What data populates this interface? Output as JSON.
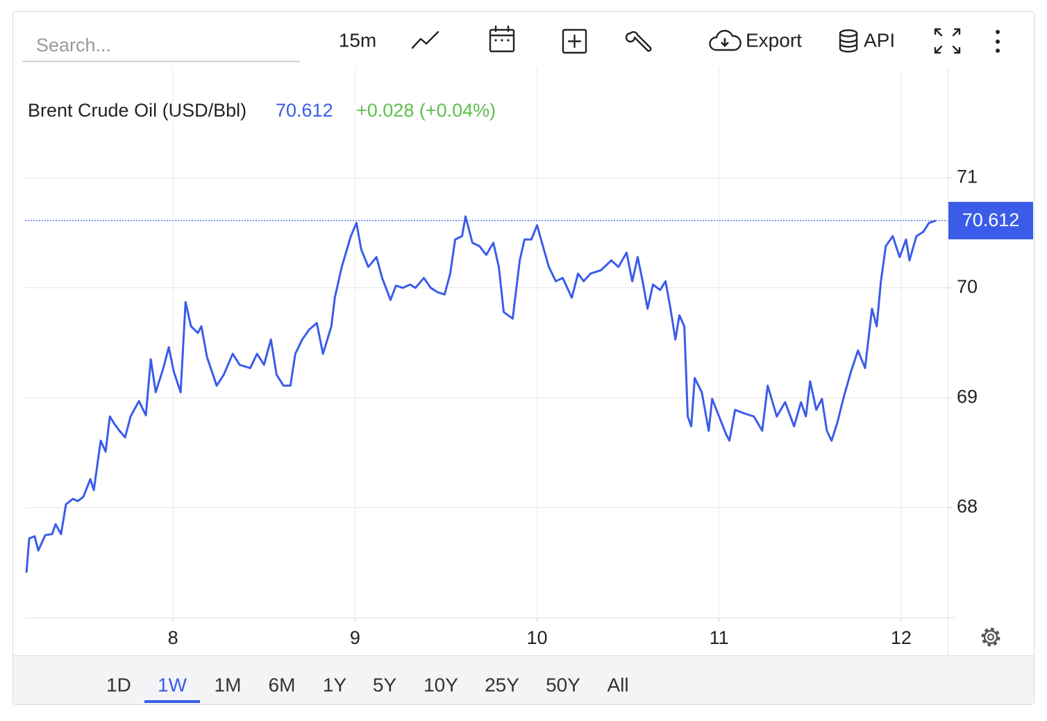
{
  "toolbar": {
    "search_placeholder": "Search...",
    "interval": "15m",
    "export": "Export",
    "api": "API"
  },
  "ranges": [
    "1D",
    "1W",
    "1M",
    "6M",
    "1Y",
    "5Y",
    "10Y",
    "25Y",
    "50Y",
    "All"
  ],
  "selected_range": 1,
  "chart_data": {
    "type": "line",
    "price": 70.612,
    "change": "+0.028 (+0.04%)",
    "price_color": "#3a5ce9",
    "change_color": "#5cbf4b",
    "xlim": [
      7.187,
      12.256
    ],
    "xticks": [
      8,
      9,
      10,
      11,
      12
    ],
    "ylim": [
      67,
      72
    ],
    "yticks": [
      68,
      69,
      70,
      71
    ],
    "grid": true,
    "series": [
      {
        "name": "Brent Crude Oil (USD/Bbl)",
        "color": "#3a5ce9",
        "x": [
          7.195,
          7.21,
          7.24,
          7.26,
          7.298,
          7.336,
          7.355,
          7.385,
          7.412,
          7.45,
          7.477,
          7.508,
          7.546,
          7.565,
          7.603,
          7.63,
          7.653,
          7.679,
          7.706,
          7.737,
          7.767,
          7.813,
          7.851,
          7.878,
          7.905,
          7.947,
          7.977,
          8.004,
          8.042,
          8.069,
          8.099,
          8.137,
          8.156,
          8.187,
          8.24,
          8.279,
          8.328,
          8.366,
          8.424,
          8.462,
          8.5,
          8.538,
          8.569,
          8.607,
          8.645,
          8.672,
          8.71,
          8.748,
          8.79,
          8.824,
          8.87,
          8.889,
          8.927,
          8.977,
          9.008,
          9.034,
          9.073,
          9.118,
          9.149,
          9.195,
          9.225,
          9.263,
          9.302,
          9.332,
          9.378,
          9.416,
          9.454,
          9.492,
          9.523,
          9.55,
          9.588,
          9.607,
          9.645,
          9.683,
          9.721,
          9.76,
          9.79,
          9.817,
          9.866,
          9.905,
          9.931,
          9.969,
          10.0,
          10.027,
          10.065,
          10.103,
          10.141,
          10.191,
          10.225,
          10.256,
          10.294,
          10.351,
          10.408,
          10.447,
          10.492,
          10.523,
          10.553,
          10.58,
          10.607,
          10.637,
          10.676,
          10.706,
          10.733,
          10.76,
          10.782,
          10.809,
          10.828,
          10.847,
          10.866,
          10.905,
          10.943,
          10.962,
          11.0,
          11.038,
          11.057,
          11.088,
          11.134,
          11.191,
          11.237,
          11.267,
          11.317,
          11.363,
          11.412,
          11.45,
          11.477,
          11.5,
          11.534,
          11.565,
          11.592,
          11.618,
          11.649,
          11.687,
          11.725,
          11.763,
          11.802,
          11.84,
          11.866,
          11.889,
          11.916,
          11.954,
          11.992,
          12.027,
          12.046,
          12.084,
          12.122,
          12.153,
          12.191
        ],
        "values": [
          67.41,
          67.72,
          67.74,
          67.61,
          67.75,
          67.76,
          67.85,
          67.76,
          68.03,
          68.08,
          68.06,
          68.1,
          68.26,
          68.16,
          68.61,
          68.51,
          68.83,
          68.76,
          68.7,
          68.64,
          68.83,
          68.97,
          68.84,
          69.35,
          69.05,
          69.27,
          69.46,
          69.24,
          69.05,
          69.87,
          69.65,
          69.59,
          69.65,
          69.37,
          69.11,
          69.21,
          69.4,
          69.3,
          69.27,
          69.4,
          69.3,
          69.53,
          69.21,
          69.11,
          69.11,
          69.4,
          69.53,
          69.62,
          69.68,
          69.4,
          69.65,
          69.91,
          70.19,
          70.47,
          70.59,
          70.35,
          70.19,
          70.28,
          70.09,
          69.89,
          70.02,
          70.0,
          70.03,
          70.0,
          70.09,
          70.0,
          69.96,
          69.94,
          70.13,
          70.44,
          70.47,
          70.65,
          70.41,
          70.38,
          70.3,
          70.41,
          70.19,
          69.78,
          69.72,
          70.25,
          70.44,
          70.44,
          70.57,
          70.41,
          70.19,
          70.06,
          70.09,
          69.91,
          70.13,
          70.06,
          70.13,
          70.16,
          70.25,
          70.19,
          70.32,
          70.06,
          70.28,
          70.06,
          69.81,
          70.03,
          69.98,
          70.06,
          69.81,
          69.53,
          69.75,
          69.65,
          68.83,
          68.74,
          69.18,
          69.05,
          68.7,
          68.99,
          68.83,
          68.67,
          68.61,
          68.89,
          68.86,
          68.83,
          68.7,
          69.11,
          68.83,
          68.96,
          68.74,
          68.96,
          68.83,
          69.15,
          68.89,
          68.99,
          68.7,
          68.61,
          68.77,
          69.02,
          69.24,
          69.43,
          69.27,
          69.81,
          69.65,
          70.06,
          70.38,
          70.47,
          70.28,
          70.44,
          70.25,
          70.47,
          70.51,
          70.59,
          70.612
        ]
      }
    ]
  }
}
